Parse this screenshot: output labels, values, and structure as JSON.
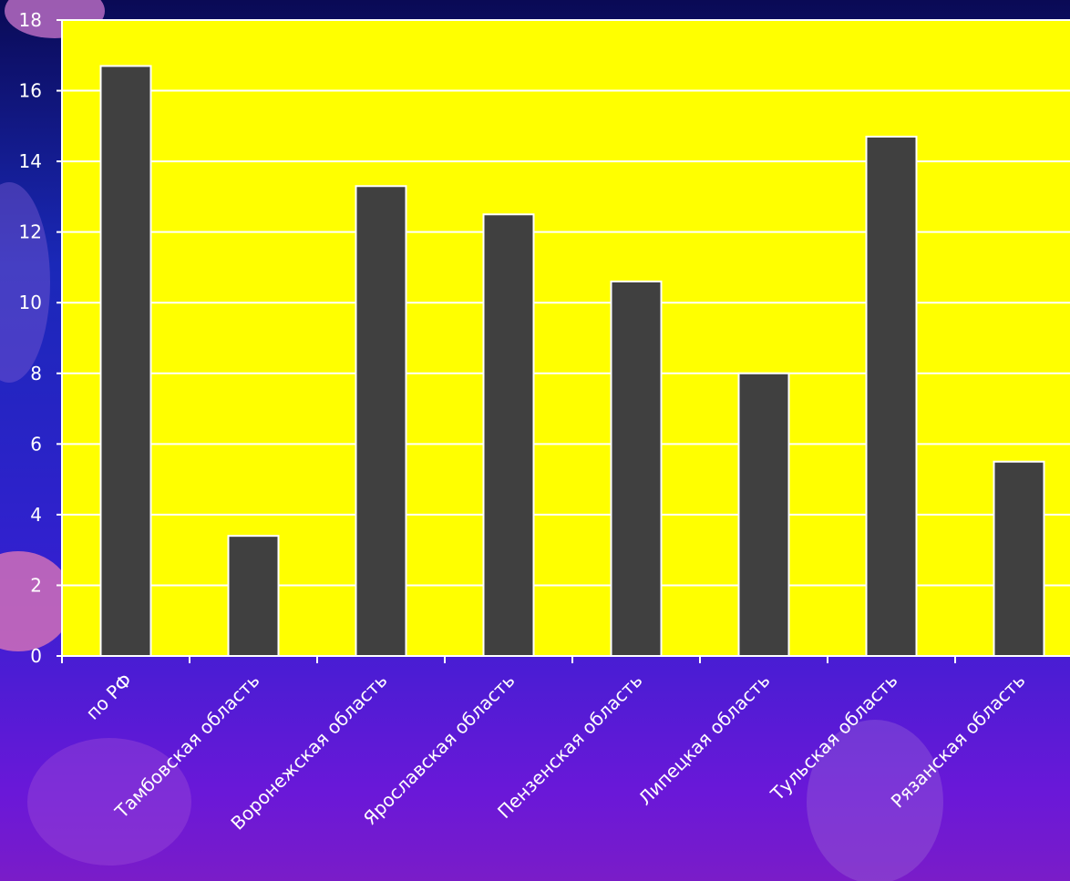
{
  "chart_data": {
    "type": "bar",
    "title": "",
    "xlabel": "",
    "ylabel": "",
    "categories": [
      "по РФ",
      "Тамбовская область",
      "Воронежская область",
      "Ярославская область",
      "Пензенская область",
      "Липецкая область",
      "Тульская область",
      "Рязанская область"
    ],
    "values": [
      16.7,
      3.4,
      13.3,
      12.5,
      10.6,
      8.0,
      14.7,
      5.5
    ],
    "ylim": [
      0,
      18
    ],
    "yticks": [
      0,
      2,
      4,
      6,
      8,
      10,
      12,
      14,
      16,
      18
    ],
    "grid": true,
    "legend": "none"
  },
  "colors": {
    "plot_background": "#ffff00",
    "bar_fill": "#404040",
    "bar_stroke": "#ffffff",
    "gridline": "#ffffff",
    "axis": "#ffffff",
    "text": "#ffffff"
  }
}
